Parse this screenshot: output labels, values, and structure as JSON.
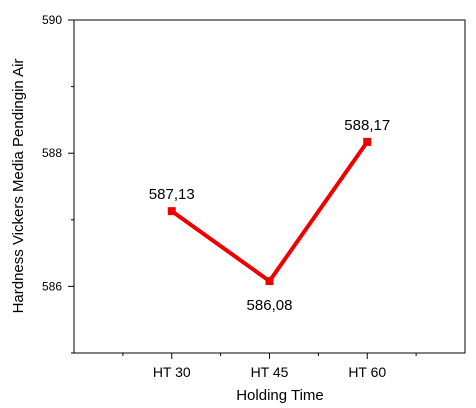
{
  "chart_data": {
    "type": "line",
    "title": "",
    "xlabel": "Holding Time",
    "ylabel": "Hardness Vickers Media Pendingin Air",
    "categories": [
      "HT 30",
      "HT 45",
      "HT 60"
    ],
    "series": [
      {
        "values": [
          587.13,
          586.08,
          588.17
        ],
        "labels": [
          "587,13",
          "586,08",
          "588,17"
        ],
        "color": "#ee0000"
      }
    ],
    "ylim": [
      585,
      590
    ],
    "y_ticks": [
      586,
      588,
      590
    ],
    "y_tick_labels": [
      "586",
      "588",
      "590"
    ],
    "grid": false,
    "marker": "square"
  }
}
